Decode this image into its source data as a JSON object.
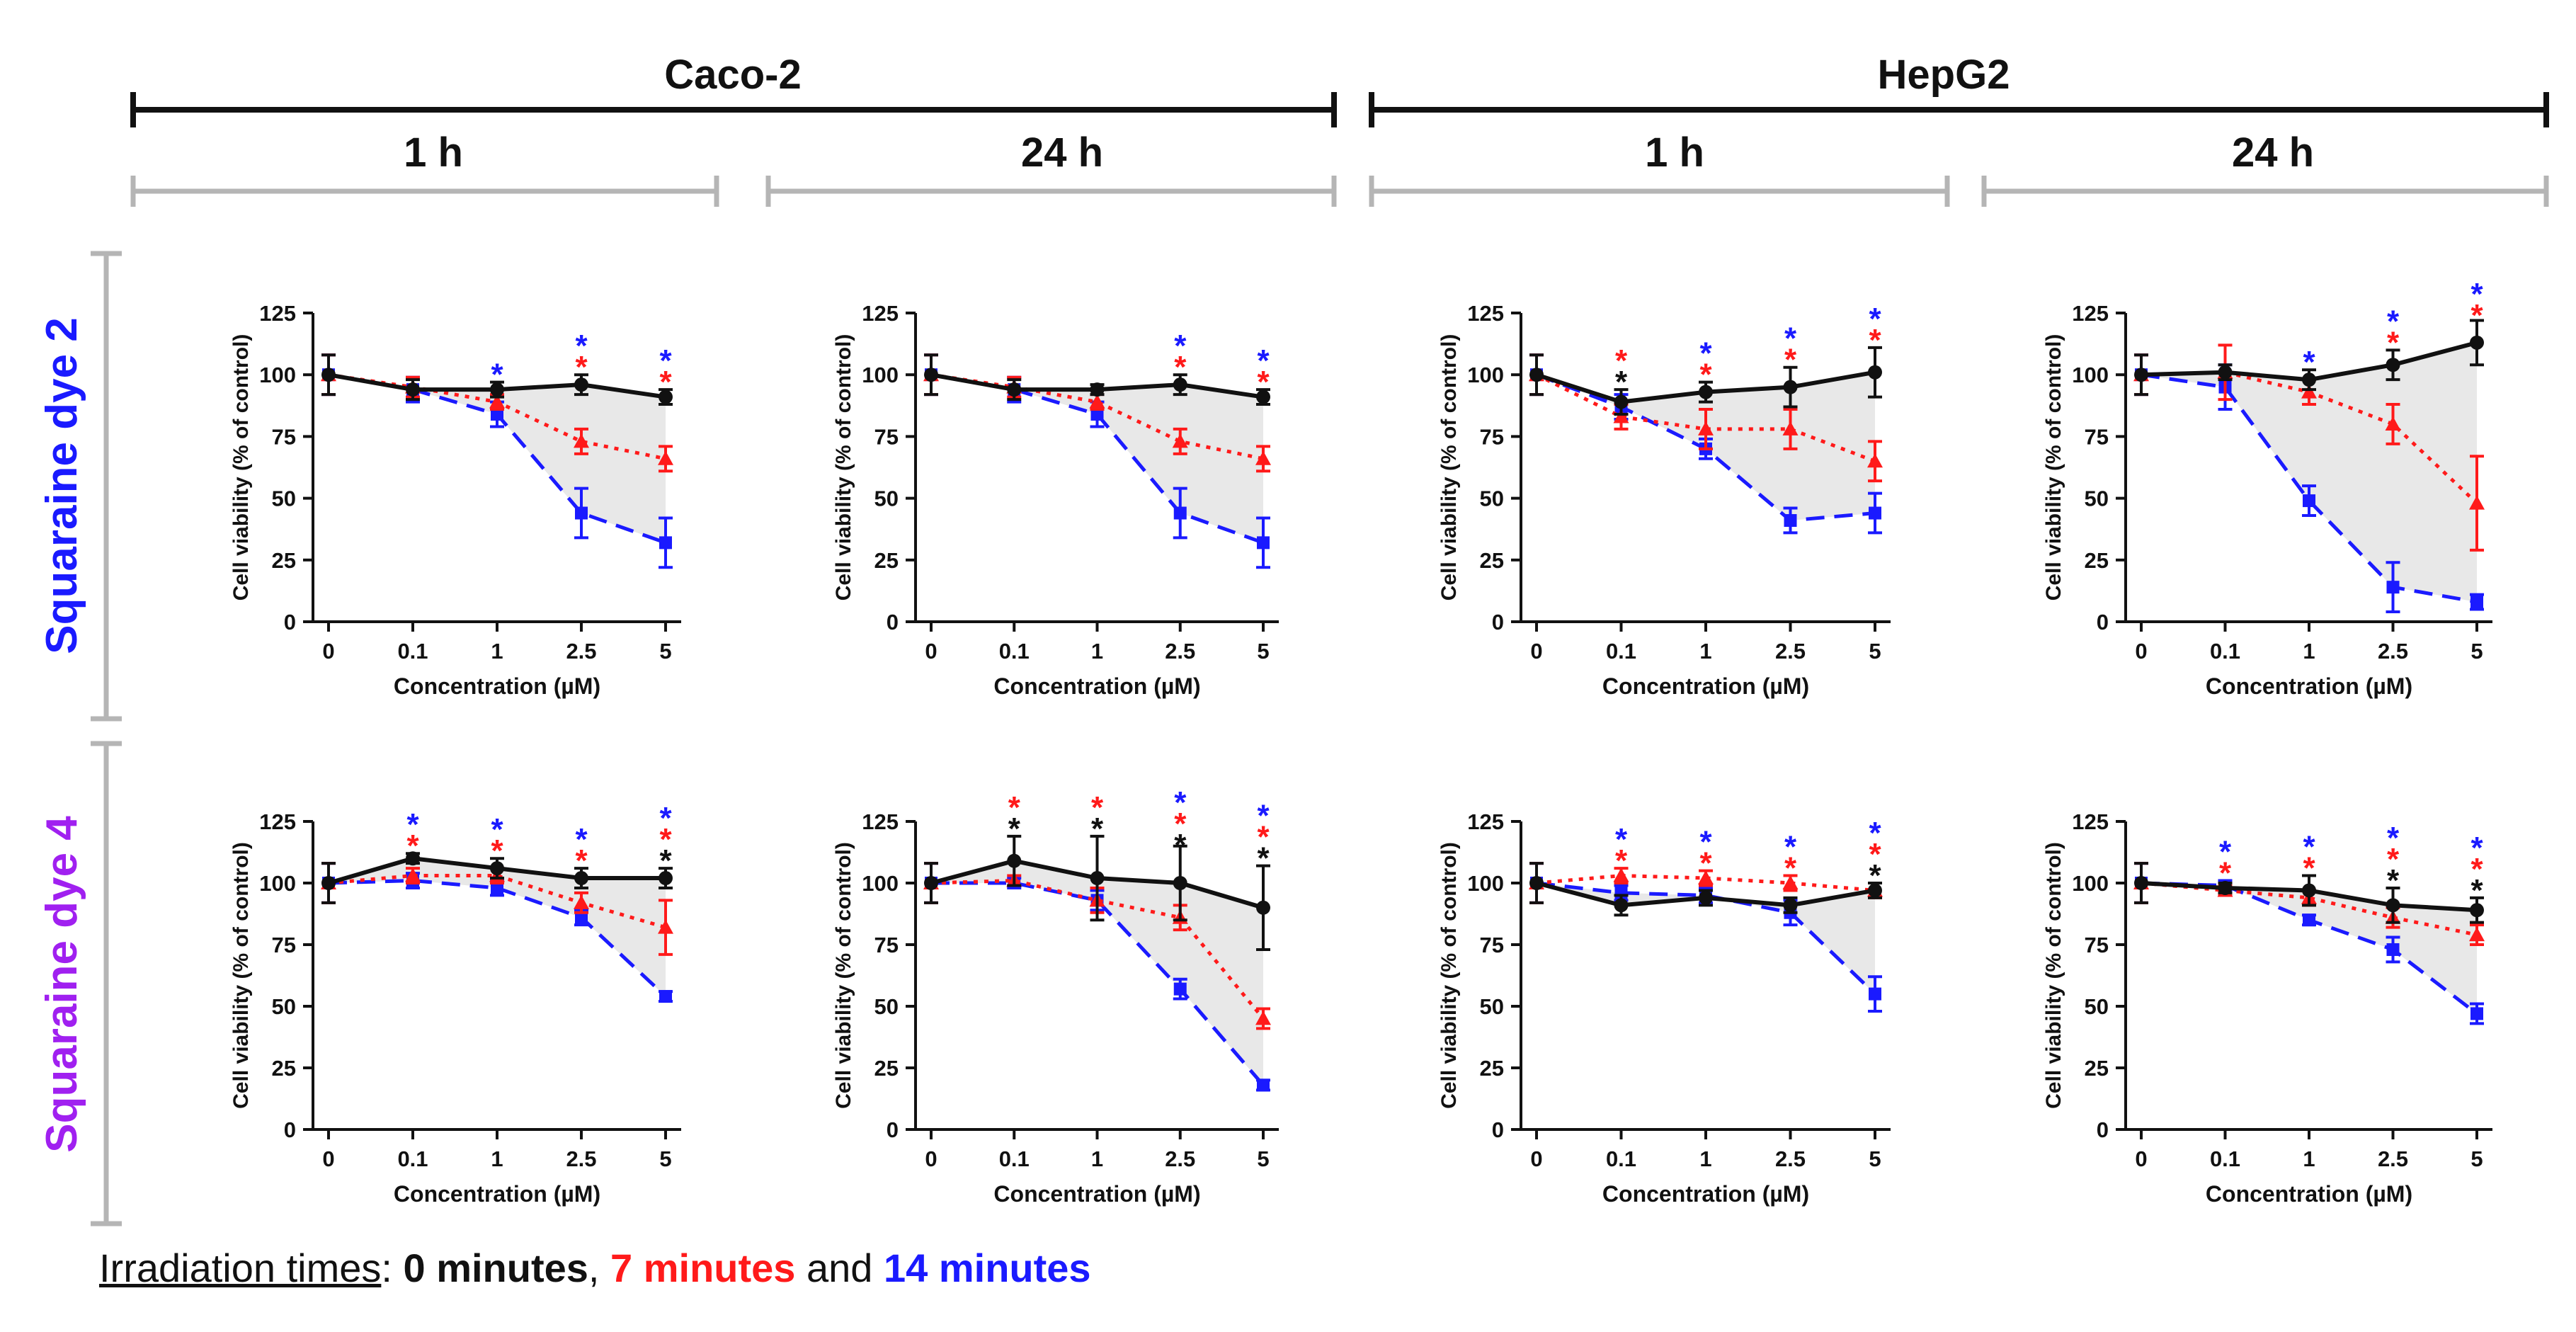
{
  "headers": {
    "cell_lines": [
      "Caco-2",
      "HepG2"
    ],
    "times": [
      "1 h",
      "24 h"
    ],
    "dyes": [
      {
        "name": "Squaraine dye 2",
        "color": "#1a1aff"
      },
      {
        "name": "Squaraine dye 4",
        "color": "#a020f0"
      }
    ]
  },
  "caption": {
    "lead": "Irradiation times",
    "colon": ":",
    "m0": "0 minutes",
    "sep1": ",",
    "m7": "7 minutes",
    "and": "and",
    "m14": "14 minutes"
  },
  "colors": {
    "t0": "#111111",
    "t7": "#ff1a1a",
    "t14": "#1a1aff",
    "shade": "#e8e8e8"
  },
  "chart_data": [
    {
      "type": "line",
      "title": "Caco-2 · 1 h · Squaraine dye 2",
      "xlabel": "Concentration (µM)",
      "ylabel": "Cell viability (% of control)",
      "categories": [
        "0",
        "0.1",
        "1",
        "2.5",
        "5"
      ],
      "ylim": [
        0,
        125
      ],
      "yticks": [
        0,
        25,
        50,
        75,
        100,
        125
      ],
      "series": [
        {
          "name": "0 minutes",
          "values": [
            100,
            94,
            94,
            96,
            91
          ],
          "errors": [
            8,
            4,
            3,
            4,
            3
          ]
        },
        {
          "name": "7 minutes",
          "values": [
            100,
            95,
            89,
            73,
            66
          ],
          "errors": [
            8,
            4,
            3,
            5,
            5
          ]
        },
        {
          "name": "14 minutes",
          "values": [
            100,
            94,
            84,
            44,
            32
          ],
          "errors": [
            8,
            5,
            5,
            10,
            10
          ]
        }
      ],
      "stars": [
        [],
        [],
        [
          "14"
        ],
        [
          "14",
          "7"
        ],
        [
          "14",
          "7"
        ]
      ]
    },
    {
      "type": "line",
      "title": "Caco-2 · 24 h · Squaraine dye 2",
      "xlabel": "Concentration (µM)",
      "ylabel": "Cell viability (% of control)",
      "categories": [
        "0",
        "0.1",
        "1",
        "2.5",
        "5"
      ],
      "ylim": [
        0,
        125
      ],
      "yticks": [
        0,
        25,
        50,
        75,
        100,
        125
      ],
      "series": [
        {
          "name": "0 minutes",
          "values": [
            100,
            94,
            94,
            96,
            91
          ],
          "errors": [
            8,
            4,
            2,
            4,
            3
          ]
        },
        {
          "name": "7 minutes",
          "values": [
            100,
            95,
            89,
            73,
            66
          ],
          "errors": [
            8,
            4,
            3,
            5,
            5
          ]
        },
        {
          "name": "14 minutes",
          "values": [
            100,
            94,
            84,
            44,
            32
          ],
          "errors": [
            8,
            5,
            5,
            10,
            10
          ]
        }
      ],
      "stars": [
        [],
        [],
        [],
        [
          "14",
          "7"
        ],
        [
          "14",
          "7"
        ]
      ]
    },
    {
      "type": "line",
      "title": "HepG2 · 1 h · Squaraine dye 2",
      "xlabel": "Concentration (µM)",
      "ylabel": "Cell viability (% of control)",
      "categories": [
        "0",
        "0.1",
        "1",
        "2.5",
        "5"
      ],
      "ylim": [
        0,
        125
      ],
      "yticks": [
        0,
        25,
        50,
        75,
        100,
        125
      ],
      "series": [
        {
          "name": "0 minutes",
          "values": [
            100,
            89,
            93,
            95,
            101
          ],
          "errors": [
            8,
            5,
            4,
            8,
            10
          ]
        },
        {
          "name": "7 minutes",
          "values": [
            100,
            83,
            78,
            78,
            65
          ],
          "errors": [
            8,
            5,
            8,
            8,
            8
          ]
        },
        {
          "name": "14 minutes",
          "values": [
            100,
            87,
            70,
            41,
            44
          ],
          "errors": [
            8,
            5,
            4,
            5,
            8
          ]
        }
      ],
      "stars": [
        [],
        [
          "7",
          "0"
        ],
        [
          "14",
          "7"
        ],
        [
          "14",
          "7"
        ],
        [
          "14",
          "7"
        ]
      ]
    },
    {
      "type": "line",
      "title": "HepG2 · 24 h · Squaraine dye 2",
      "xlabel": "Concentration (µM)",
      "ylabel": "Cell viability (% of control)",
      "categories": [
        "0",
        "0.1",
        "1",
        "2.5",
        "5"
      ],
      "ylim": [
        0,
        125
      ],
      "yticks": [
        0,
        25,
        50,
        75,
        100,
        125
      ],
      "series": [
        {
          "name": "0 minutes",
          "values": [
            100,
            101,
            98,
            104,
            113
          ],
          "errors": [
            8,
            3,
            4,
            6,
            9
          ]
        },
        {
          "name": "7 minutes",
          "values": [
            100,
            101,
            93,
            80,
            48
          ],
          "errors": [
            8,
            11,
            5,
            8,
            19
          ]
        },
        {
          "name": "14 minutes",
          "values": [
            100,
            95,
            49,
            14,
            8
          ],
          "errors": [
            8,
            9,
            6,
            10,
            3
          ]
        }
      ],
      "stars": [
        [],
        [],
        [
          "14"
        ],
        [
          "14",
          "7"
        ],
        [
          "14",
          "7"
        ]
      ]
    },
    {
      "type": "line",
      "title": "Caco-2 · 1 h · Squaraine dye 4",
      "xlabel": "Concentration (µM)",
      "ylabel": "Cell viability (% of control)",
      "categories": [
        "0",
        "0.1",
        "1",
        "2.5",
        "5"
      ],
      "ylim": [
        0,
        125
      ],
      "yticks": [
        0,
        25,
        50,
        75,
        100,
        125
      ],
      "series": [
        {
          "name": "0 minutes",
          "values": [
            100,
            110,
            106,
            102,
            102
          ],
          "errors": [
            8,
            2,
            4,
            4,
            4
          ]
        },
        {
          "name": "7 minutes",
          "values": [
            100,
            103,
            103,
            92,
            82
          ],
          "errors": [
            8,
            3,
            3,
            4,
            11
          ]
        },
        {
          "name": "14 minutes",
          "values": [
            100,
            101,
            98,
            86,
            54
          ],
          "errors": [
            8,
            3,
            3,
            3,
            2
          ]
        }
      ],
      "stars": [
        [],
        [
          "14",
          "7"
        ],
        [
          "14",
          "7"
        ],
        [
          "14",
          "7"
        ],
        [
          "14",
          "7",
          "0"
        ]
      ]
    },
    {
      "type": "line",
      "title": "Caco-2 · 24 h · Squaraine dye 4",
      "xlabel": "Concentration (µM)",
      "ylabel": "Cell viability (% of control)",
      "categories": [
        "0",
        "0.1",
        "1",
        "2.5",
        "5"
      ],
      "ylim": [
        0,
        125
      ],
      "yticks": [
        0,
        25,
        50,
        75,
        100,
        125
      ],
      "series": [
        {
          "name": "0 minutes",
          "values": [
            100,
            109,
            102,
            100,
            90
          ],
          "errors": [
            8,
            10,
            17,
            15,
            17
          ]
        },
        {
          "name": "7 minutes",
          "values": [
            100,
            101,
            93,
            86,
            45
          ],
          "errors": [
            8,
            2,
            5,
            5,
            4
          ]
        },
        {
          "name": "14 minutes",
          "values": [
            100,
            100,
            93,
            57,
            18
          ],
          "errors": [
            8,
            2,
            4,
            4,
            2
          ]
        }
      ],
      "stars": [
        [],
        [
          "7",
          "0"
        ],
        [
          "7",
          "0"
        ],
        [
          "14",
          "7",
          "0"
        ],
        [
          "14",
          "7",
          "0"
        ]
      ]
    },
    {
      "type": "line",
      "title": "HepG2 · 1 h · Squaraine dye 4",
      "xlabel": "Concentration (µM)",
      "ylabel": "Cell viability (% of control)",
      "categories": [
        "0",
        "0.1",
        "1",
        "2.5",
        "5"
      ],
      "ylim": [
        0,
        125
      ],
      "yticks": [
        0,
        25,
        50,
        75,
        100,
        125
      ],
      "series": [
        {
          "name": "0 minutes",
          "values": [
            100,
            91,
            94,
            91,
            97
          ],
          "errors": [
            8,
            4,
            3,
            3,
            3
          ]
        },
        {
          "name": "7 minutes",
          "values": [
            100,
            103,
            102,
            100,
            97
          ],
          "errors": [
            8,
            3,
            3,
            3,
            3
          ]
        },
        {
          "name": "14 minutes",
          "values": [
            100,
            96,
            95,
            88,
            55
          ],
          "errors": [
            8,
            3,
            3,
            5,
            7
          ]
        }
      ],
      "stars": [
        [],
        [
          "14",
          "7"
        ],
        [
          "14",
          "7"
        ],
        [
          "14",
          "7"
        ],
        [
          "14",
          "7",
          "0"
        ]
      ]
    },
    {
      "type": "line",
      "title": "HepG2 · 24 h · Squaraine dye 4",
      "xlabel": "Concentration (µM)",
      "ylabel": "Cell viability (% of control)",
      "categories": [
        "0",
        "0.1",
        "1",
        "2.5",
        "5"
      ],
      "ylim": [
        0,
        125
      ],
      "yticks": [
        0,
        25,
        50,
        75,
        100,
        125
      ],
      "series": [
        {
          "name": "0 minutes",
          "values": [
            100,
            98,
            97,
            91,
            89
          ],
          "errors": [
            8,
            2,
            6,
            7,
            5
          ]
        },
        {
          "name": "7 minutes",
          "values": [
            100,
            97,
            94,
            86,
            79
          ],
          "errors": [
            8,
            2,
            3,
            4,
            4
          ]
        },
        {
          "name": "14 minutes",
          "values": [
            100,
            99,
            85,
            73,
            47
          ],
          "errors": [
            8,
            2,
            2,
            5,
            4
          ]
        }
      ],
      "stars": [
        [],
        [
          "14",
          "7"
        ],
        [
          "14",
          "7"
        ],
        [
          "14",
          "7",
          "0"
        ],
        [
          "14",
          "7",
          "0"
        ]
      ]
    }
  ]
}
